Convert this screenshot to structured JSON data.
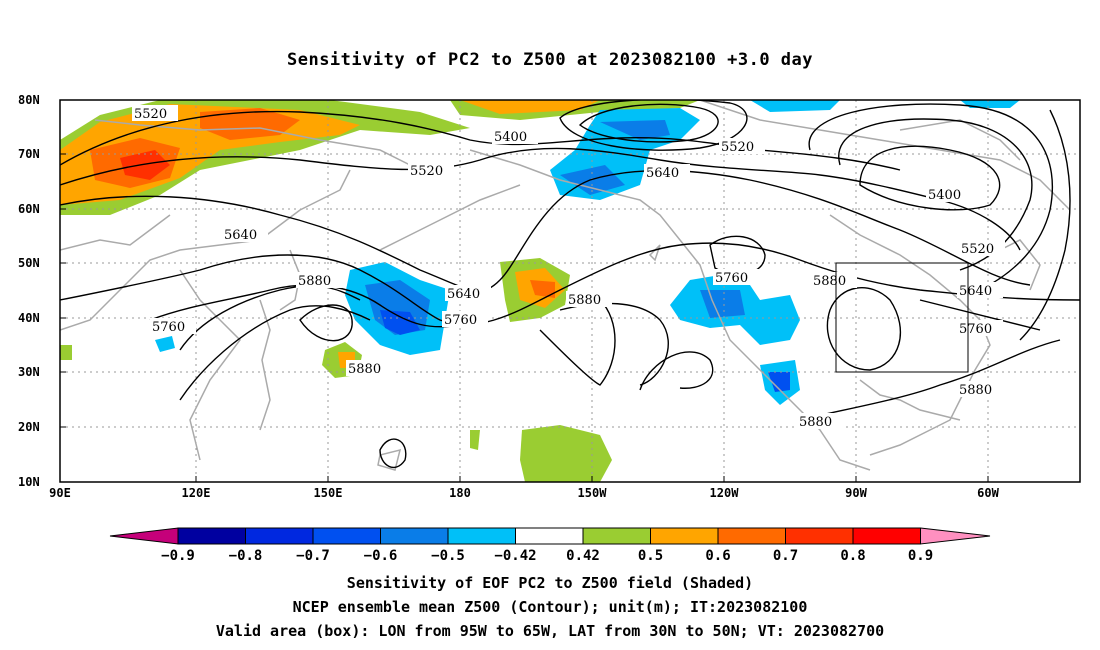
{
  "title": "Sensitivity of PC2 to Z500 at 2023082100 +3.0 day",
  "lat_labels": [
    "80N",
    "70N",
    "60N",
    "50N",
    "40N",
    "30N",
    "20N",
    "10N"
  ],
  "lon_labels": [
    "90E",
    "120E",
    "150E",
    "180",
    "150W",
    "120W",
    "90W",
    "60W"
  ],
  "contour_labels": [
    "5520",
    "5400",
    "5520",
    "5520",
    "5640",
    "5400",
    "5640",
    "5520",
    "5880",
    "5640",
    "5760",
    "5880",
    "5760",
    "5760",
    "5880",
    "5640",
    "5880",
    "5760",
    "5880",
    "5880"
  ],
  "colorbar": {
    "labels": [
      "−0.9",
      "−0.8",
      "−0.7",
      "−0.6",
      "−0.5",
      "−0.42",
      "0.42",
      "0.5",
      "0.6",
      "0.7",
      "0.8",
      "0.9"
    ],
    "colors": [
      "#c5007a",
      "#0000a0",
      "#0028e0",
      "#0050f0",
      "#0a7de8",
      "#00c0f8",
      "#ffffff",
      "#9acd32",
      "#ffa500",
      "#ff6a00",
      "#ff3000",
      "#ff0000",
      "#ff90c0"
    ]
  },
  "footer": [
    "Sensitivity of EOF PC2 to Z500 field (Shaded)",
    "NCEP ensemble mean Z500 (Contour); unit(m); IT:2023082100",
    "Valid area (box): LON from 95W to 65W, LAT from 30N to 50N; VT: 2023082700"
  ]
}
